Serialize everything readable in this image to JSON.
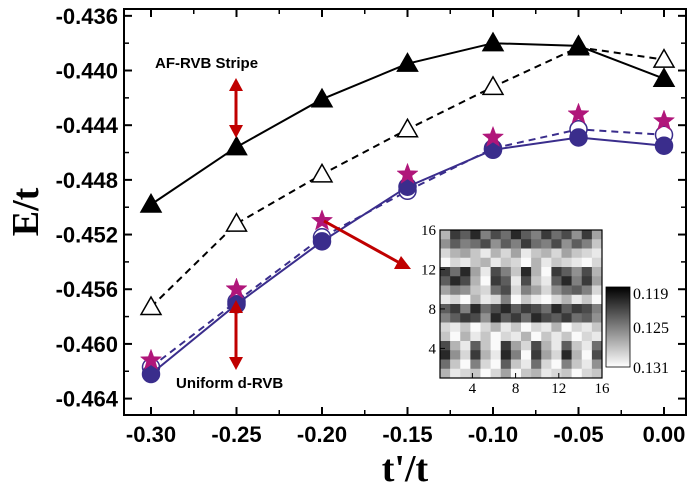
{
  "chart_data": {
    "type": "line",
    "xlabel": "t'/t",
    "ylabel": "E/t",
    "xlim": [
      -0.3,
      0.0
    ],
    "ylim": [
      -0.4652,
      -0.4355
    ],
    "x_ticks": [
      "-0.30",
      "-0.25",
      "-0.20",
      "-0.15",
      "-0.10",
      "-0.05",
      "0.00"
    ],
    "y_ticks": [
      "-0.436",
      "-0.440",
      "-0.444",
      "-0.448",
      "-0.452",
      "-0.456",
      "-0.460",
      "-0.464"
    ],
    "x_tick_values": [
      -0.3,
      -0.25,
      -0.2,
      -0.15,
      -0.1,
      -0.05,
      0.0
    ],
    "y_tick_values": [
      -0.436,
      -0.44,
      -0.444,
      -0.448,
      -0.452,
      -0.456,
      -0.46,
      -0.464
    ],
    "x": [
      -0.3,
      -0.25,
      -0.2,
      -0.15,
      -0.1,
      -0.05,
      0.0
    ],
    "series": [
      {
        "values": [
          -0.4498,
          -0.4456,
          -0.4421,
          -0.4395,
          -0.438,
          -0.4382,
          -0.4406
        ],
        "color": "#000000",
        "line": "solid",
        "marker": "triangle-filled"
      },
      {
        "values": [
          -0.4573,
          -0.4512,
          -0.4476,
          -0.4443,
          -0.4412,
          -0.4383,
          -0.4392
        ],
        "color": "#000000",
        "line": "dashed",
        "marker": "triangle-open"
      },
      {
        "values": [
          -0.4622,
          -0.4571,
          -0.4525,
          -0.4485,
          -0.4458,
          -0.4449,
          -0.4455
        ],
        "color": "#3a2d8c",
        "line": "solid",
        "marker": "circle-filled"
      },
      {
        "values": [
          -0.4617,
          -0.4569,
          -0.4522,
          -0.4488,
          -0.4457,
          -0.4443,
          -0.4447
        ],
        "color": "#3a2d8c",
        "line": "dashed",
        "marker": "circle-open"
      },
      {
        "values": [
          -0.4612,
          -0.456,
          -0.451,
          -0.4476,
          -0.4449,
          -0.4432,
          -0.4437
        ],
        "color": "#b0167a",
        "line": "none",
        "marker": "star"
      }
    ],
    "annotations": [
      {
        "text": "AF-RVB Stripe",
        "arrow_to_series": 0,
        "arrow_at_x": -0.25
      },
      {
        "text": "Uniform d-RVB",
        "arrow_to_series": 2,
        "arrow_at_x": -0.25
      }
    ],
    "inset": {
      "type": "heatmap",
      "x_ticks": [
        "4",
        "8",
        "12",
        "16"
      ],
      "y_ticks": [
        "4",
        "8",
        "12",
        "16"
      ],
      "colorbar_ticks": [
        "0.119",
        "0.125",
        "0.131"
      ],
      "colorbar_range": [
        0.119,
        0.131
      ],
      "grid_size": 16,
      "rows_top_to_bottom": [
        [
          0.127,
          0.12,
          0.122,
          0.119,
          0.124,
          0.121,
          0.123,
          0.119,
          0.122,
          0.124,
          0.12,
          0.123,
          0.121,
          0.125,
          0.12,
          0.126
        ],
        [
          0.125,
          0.122,
          0.124,
          0.123,
          0.121,
          0.125,
          0.122,
          0.124,
          0.12,
          0.123,
          0.124,
          0.121,
          0.125,
          0.122,
          0.124,
          0.128
        ],
        [
          0.129,
          0.127,
          0.126,
          0.128,
          0.13,
          0.127,
          0.129,
          0.126,
          0.13,
          0.128,
          0.127,
          0.129,
          0.126,
          0.128,
          0.129,
          0.13
        ],
        [
          0.131,
          0.129,
          0.13,
          0.128,
          0.127,
          0.13,
          0.128,
          0.129,
          0.131,
          0.127,
          0.13,
          0.128,
          0.129,
          0.13,
          0.131,
          0.129
        ],
        [
          0.12,
          0.123,
          0.119,
          0.126,
          0.13,
          0.121,
          0.124,
          0.128,
          0.119,
          0.127,
          0.131,
          0.12,
          0.122,
          0.125,
          0.121,
          0.127
        ],
        [
          0.122,
          0.119,
          0.121,
          0.127,
          0.131,
          0.12,
          0.122,
          0.13,
          0.121,
          0.128,
          0.13,
          0.122,
          0.119,
          0.124,
          0.12,
          0.126
        ],
        [
          0.126,
          0.124,
          0.125,
          0.128,
          0.129,
          0.123,
          0.121,
          0.129,
          0.124,
          0.126,
          0.129,
          0.125,
          0.123,
          0.122,
          0.124,
          0.129
        ],
        [
          0.13,
          0.129,
          0.131,
          0.127,
          0.13,
          0.129,
          0.124,
          0.131,
          0.128,
          0.13,
          0.131,
          0.129,
          0.127,
          0.13,
          0.128,
          0.131
        ],
        [
          0.122,
          0.12,
          0.124,
          0.119,
          0.123,
          0.121,
          0.119,
          0.122,
          0.12,
          0.121,
          0.123,
          0.119,
          0.122,
          0.12,
          0.121,
          0.124
        ],
        [
          0.124,
          0.122,
          0.12,
          0.121,
          0.125,
          0.119,
          0.122,
          0.12,
          0.123,
          0.119,
          0.121,
          0.122,
          0.12,
          0.123,
          0.122,
          0.125
        ],
        [
          0.129,
          0.13,
          0.128,
          0.131,
          0.129,
          0.127,
          0.13,
          0.128,
          0.131,
          0.129,
          0.13,
          0.127,
          0.131,
          0.129,
          0.13,
          0.128
        ],
        [
          0.128,
          0.131,
          0.127,
          0.13,
          0.128,
          0.131,
          0.129,
          0.13,
          0.127,
          0.131,
          0.128,
          0.13,
          0.128,
          0.131,
          0.129,
          0.13
        ],
        [
          0.121,
          0.127,
          0.13,
          0.122,
          0.128,
          0.131,
          0.12,
          0.126,
          0.129,
          0.121,
          0.127,
          0.13,
          0.122,
          0.128,
          0.13,
          0.123
        ],
        [
          0.119,
          0.125,
          0.129,
          0.12,
          0.127,
          0.13,
          0.119,
          0.124,
          0.131,
          0.12,
          0.126,
          0.129,
          0.119,
          0.127,
          0.131,
          0.121
        ],
        [
          0.123,
          0.128,
          0.131,
          0.124,
          0.129,
          0.131,
          0.122,
          0.128,
          0.13,
          0.123,
          0.129,
          0.131,
          0.124,
          0.128,
          0.13,
          0.125
        ],
        [
          0.127,
          0.13,
          0.129,
          0.128,
          0.131,
          0.129,
          0.126,
          0.131,
          0.128,
          0.127,
          0.13,
          0.129,
          0.128,
          0.131,
          0.129,
          0.128
        ]
      ]
    }
  }
}
